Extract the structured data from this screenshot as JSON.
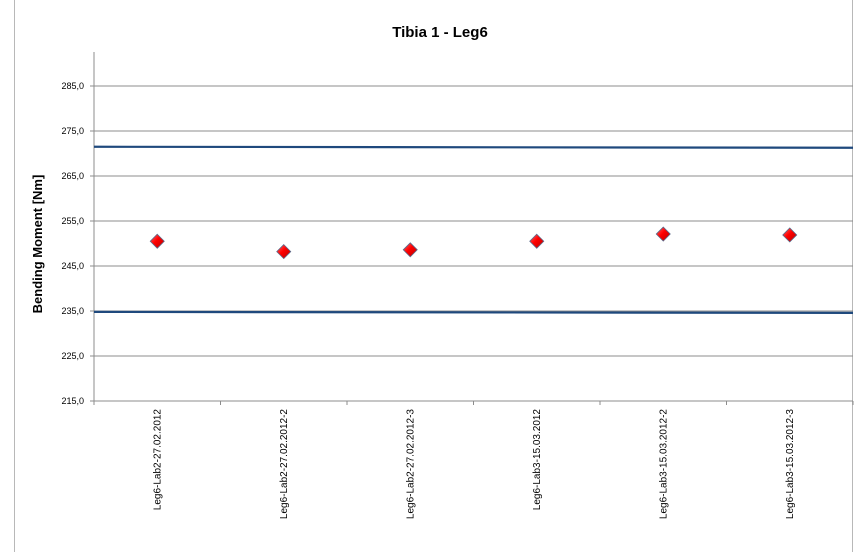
{
  "chart_data": {
    "type": "scatter",
    "title": "Tibia 1 - Leg6",
    "xlabel": "",
    "ylabel": "Bending Moment  [Nm]",
    "ylim": [
      215,
      290
    ],
    "yticks": [
      215,
      225,
      235,
      245,
      255,
      265,
      275,
      285
    ],
    "ytick_labels": [
      "215,0",
      "225,0",
      "235,0",
      "245,0",
      "255,0",
      "265,0",
      "275,0",
      "285,0"
    ],
    "categories": [
      "Leg6-Lab2-27.02.2012",
      "Leg6-Lab2-27.02.2012-2",
      "Leg6-Lab2-27.02.2012-3",
      "Leg6-Lab3-15.03.2012",
      "Leg6-Lab3-15.03.2012-2",
      "Leg6-Lab3-15.03.2012-3"
    ],
    "series": [
      {
        "values": [
          250.5,
          248.2,
          248.6,
          250.5,
          252.1,
          251.9
        ],
        "color": "#ff0000",
        "marker": "diamond"
      }
    ],
    "limit_lines": [
      {
        "value": 271.5,
        "color": "#1f497d"
      },
      {
        "value": 234.8,
        "color": "#1f497d"
      }
    ],
    "grid": true,
    "legend": "none"
  }
}
